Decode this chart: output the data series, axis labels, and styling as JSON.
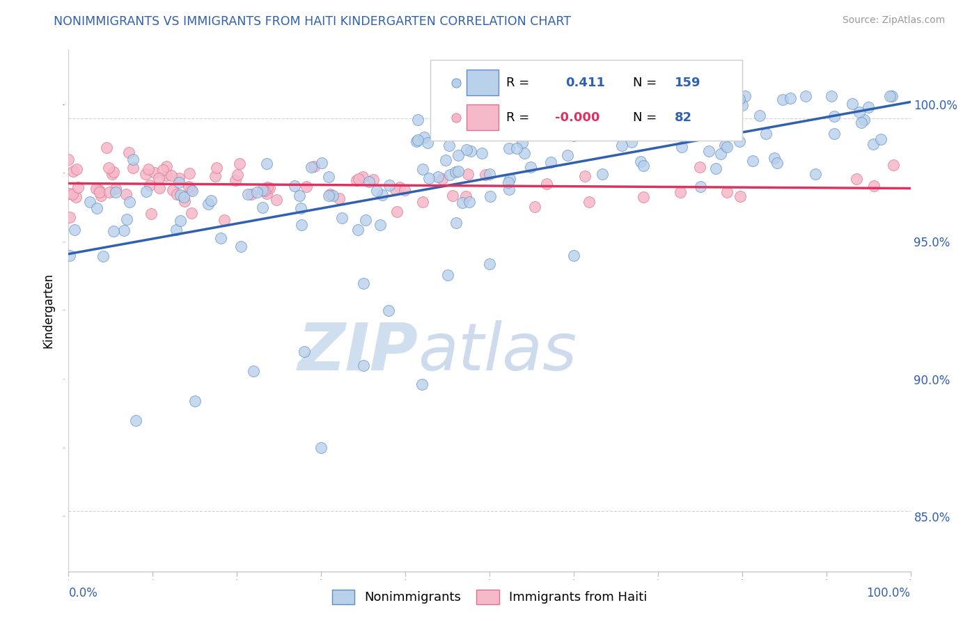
{
  "title": "NONIMMIGRANTS VS IMMIGRANTS FROM HAITI KINDERGARTEN CORRELATION CHART",
  "source": "Source: ZipAtlas.com",
  "ylabel": "Kindergarten",
  "right_yticks": [
    85.0,
    90.0,
    95.0,
    100.0
  ],
  "xmin": 0.0,
  "xmax": 100.0,
  "ymin": 83.0,
  "ymax": 102.0,
  "blue_r": "0.411",
  "blue_n": "159",
  "pink_r": "-0.000",
  "pink_n": "82",
  "blue_fill": "#b8d0ea",
  "pink_fill": "#f5b8c8",
  "blue_edge": "#5b8dc8",
  "pink_edge": "#e07090",
  "blue_line_color": "#3060b0",
  "pink_line_color": "#e03060",
  "dashed_line_top_y": 99.5,
  "dashed_line_bot_y": 85.2,
  "title_color": "#3060b0",
  "source_color": "#999999",
  "watermark_zip": "ZIP",
  "watermark_atlas": "atlas",
  "watermark_color": "#d0dff0",
  "legend_r_color": "#3060b0",
  "legend_n_color": "#3060b0",
  "legend_neg_color": "#e03060"
}
